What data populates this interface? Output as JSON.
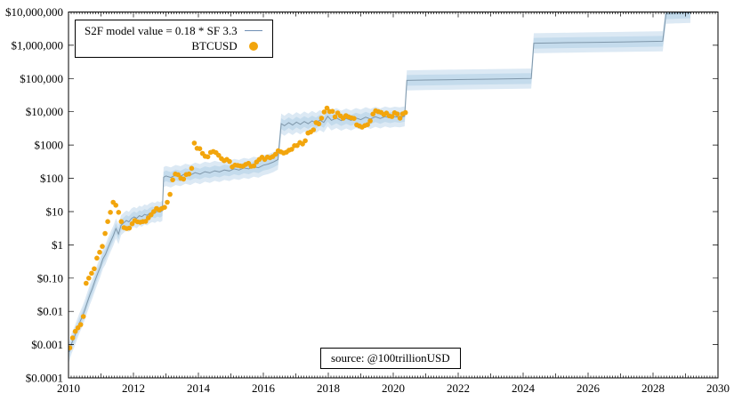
{
  "page": {
    "background": "#ffffff"
  },
  "legend": {
    "model_label": "S2F model value = 0.18 * SF 3.3",
    "btc_label": "BTCUSD",
    "position": "top-left"
  },
  "source_box": {
    "text": "source: @100trillionUSD"
  },
  "colors": {
    "background": "#ffffff",
    "axis": "#000000",
    "model_line": "#7f97aa",
    "legend_line": "#6f8fb4",
    "band_outer": "#dce9f4",
    "band_inner": "#c4dbec",
    "btc_dot": "#f2a50c"
  },
  "chart_data": {
    "type": "line+scatter",
    "title": "",
    "xlabel": "",
    "ylabel": "",
    "grid": false,
    "legend_position": "top-left",
    "x_axis": {
      "min": 2010,
      "max": 2030,
      "ticks": [
        2010,
        2012,
        2014,
        2016,
        2018,
        2020,
        2022,
        2024,
        2026,
        2028,
        2030
      ],
      "tick_labels": [
        "2010",
        "2012",
        "2014",
        "2016",
        "2018",
        "2020",
        "2022",
        "2024",
        "2026",
        "2028",
        "2030"
      ],
      "minor_tick_interval_years": 0.0833
    },
    "y_axis": {
      "scale": "log",
      "min": 0.0001,
      "max": 10000000,
      "tick_labels": [
        "$0.0001",
        "$0.001",
        "$0.01",
        "$0.10",
        "$1",
        "$10",
        "$100",
        "$1000",
        "$10,000",
        "$100,000",
        "$1,000,000",
        "$10,000,000"
      ]
    },
    "series": [
      {
        "name": "S2F model value = 0.18 * SF 3.3",
        "type": "line",
        "band_inner_ratio": 1.45,
        "band_outer_ratio": 2.0,
        "points": [
          [
            2010.02,
            0.0006
          ],
          [
            2010.1,
            0.0011
          ],
          [
            2010.18,
            0.0017
          ],
          [
            2010.26,
            0.0028
          ],
          [
            2010.34,
            0.0045
          ],
          [
            2010.42,
            0.0068
          ],
          [
            2010.5,
            0.011
          ],
          [
            2010.58,
            0.019
          ],
          [
            2010.66,
            0.032
          ],
          [
            2010.74,
            0.05
          ],
          [
            2010.82,
            0.085
          ],
          [
            2010.9,
            0.14
          ],
          [
            2010.98,
            0.22
          ],
          [
            2011.06,
            0.38
          ],
          [
            2011.14,
            0.52
          ],
          [
            2011.22,
            0.82
          ],
          [
            2011.3,
            1.25
          ],
          [
            2011.38,
            1.9
          ],
          [
            2011.46,
            3.1
          ],
          [
            2011.54,
            2.1
          ],
          [
            2011.62,
            3.9
          ],
          [
            2011.7,
            4.6
          ],
          [
            2011.78,
            5.4
          ],
          [
            2011.86,
            4.9
          ],
          [
            2011.94,
            6.2
          ],
          [
            2012.02,
            6.9
          ],
          [
            2012.1,
            6.3
          ],
          [
            2012.18,
            7.5
          ],
          [
            2012.26,
            7.0
          ],
          [
            2012.34,
            8.2
          ],
          [
            2012.42,
            7.7
          ],
          [
            2012.5,
            8.9
          ],
          [
            2012.58,
            9.7
          ],
          [
            2012.66,
            9.1
          ],
          [
            2012.74,
            10.3
          ],
          [
            2012.82,
            9.6
          ],
          [
            2012.89,
            10.6
          ],
          [
            2012.93,
            108
          ],
          [
            2013.0,
            118
          ],
          [
            2013.15,
            106
          ],
          [
            2013.3,
            126
          ],
          [
            2013.45,
            116
          ],
          [
            2013.6,
            138
          ],
          [
            2013.75,
            126
          ],
          [
            2013.9,
            148
          ],
          [
            2014.05,
            134
          ],
          [
            2014.2,
            158
          ],
          [
            2014.35,
            146
          ],
          [
            2014.5,
            168
          ],
          [
            2014.65,
            155
          ],
          [
            2014.8,
            178
          ],
          [
            2014.95,
            166
          ],
          [
            2015.1,
            192
          ],
          [
            2015.25,
            178
          ],
          [
            2015.4,
            205
          ],
          [
            2015.55,
            192
          ],
          [
            2015.7,
            222
          ],
          [
            2015.85,
            208
          ],
          [
            2016.0,
            248
          ],
          [
            2016.15,
            268
          ],
          [
            2016.3,
            305
          ],
          [
            2016.45,
            365
          ],
          [
            2016.55,
            4400
          ],
          [
            2016.65,
            3800
          ],
          [
            2016.78,
            4700
          ],
          [
            2016.9,
            4000
          ],
          [
            2017.02,
            4900
          ],
          [
            2017.14,
            4200
          ],
          [
            2017.26,
            5100
          ],
          [
            2017.38,
            4400
          ],
          [
            2017.5,
            5300
          ],
          [
            2017.62,
            4600
          ],
          [
            2017.74,
            5600
          ],
          [
            2017.86,
            4800
          ],
          [
            2017.98,
            7300
          ],
          [
            2018.1,
            5500
          ],
          [
            2018.25,
            6500
          ],
          [
            2018.4,
            5400
          ],
          [
            2018.55,
            6300
          ],
          [
            2018.7,
            5500
          ],
          [
            2018.85,
            6500
          ],
          [
            2019.0,
            5800
          ],
          [
            2019.15,
            6900
          ],
          [
            2019.3,
            6100
          ],
          [
            2019.45,
            7100
          ],
          [
            2019.6,
            6300
          ],
          [
            2019.75,
            7200
          ],
          [
            2019.9,
            6600
          ],
          [
            2020.05,
            7100
          ],
          [
            2020.2,
            6800
          ],
          [
            2020.35,
            7300
          ],
          [
            2020.42,
            88000
          ],
          [
            2021.0,
            90000
          ],
          [
            2022.0,
            93000
          ],
          [
            2023.0,
            96000
          ],
          [
            2024.25,
            100000
          ],
          [
            2024.33,
            1150000
          ],
          [
            2025.0,
            1180000
          ],
          [
            2026.0,
            1220000
          ],
          [
            2027.0,
            1260000
          ],
          [
            2028.3,
            1320000
          ],
          [
            2028.4,
            8800000
          ],
          [
            2028.7,
            9100000
          ],
          [
            2029.15,
            9400000
          ]
        ]
      },
      {
        "name": "BTCUSD",
        "type": "scatter",
        "monthly": {
          "2010": [
            0.0008,
            0.0016,
            0.0025,
            0.0032,
            0.004,
            0.007,
            0.07,
            0.1,
            0.14,
            0.19,
            0.4,
            0.6
          ],
          "2011": [
            0.9,
            2.2,
            5.0,
            9.5,
            19,
            15.5,
            9.5,
            5.0,
            3.3,
            3.1,
            3.2,
            4.3
          ],
          "2012": [
            5.4,
            4.9,
            4.8,
            5.0,
            5.1,
            6.5,
            8.0,
            10,
            12.4,
            11.2,
            12.4,
            13.4
          ],
          "2013": [
            19,
            33,
            90,
            135,
            128,
            100,
            95,
            130,
            135,
            200,
            1150,
            800
          ],
          "2014": [
            780,
            560,
            460,
            445,
            600,
            640,
            590,
            490,
            390,
            340,
            370,
            320
          ],
          "2015": [
            220,
            250,
            245,
            235,
            232,
            262,
            282,
            230,
            236,
            310,
            370,
            430
          ],
          "2016": [
            370,
            435,
            415,
            450,
            530,
            670,
            625,
            575,
            610,
            700,
            745,
            960
          ],
          "2017": [
            965,
            1190,
            1080,
            1350,
            2300,
            2480,
            2870,
            4740,
            4340,
            6450,
            9900,
            13000
          ],
          "2018": [
            10200,
            10300,
            7000,
            9240,
            7500,
            6400,
            7700,
            7000,
            6600,
            6300,
            4050,
            3750
          ],
          "2019": [
            3460,
            3850,
            4100,
            5300,
            8550,
            10700,
            10100,
            9600,
            8300,
            9150,
            7550,
            7200
          ],
          "2020": [
            9350,
            8600,
            6450,
            8650,
            9450
          ]
        }
      }
    ],
    "annotations": [
      "source: @100trillionUSD"
    ]
  }
}
